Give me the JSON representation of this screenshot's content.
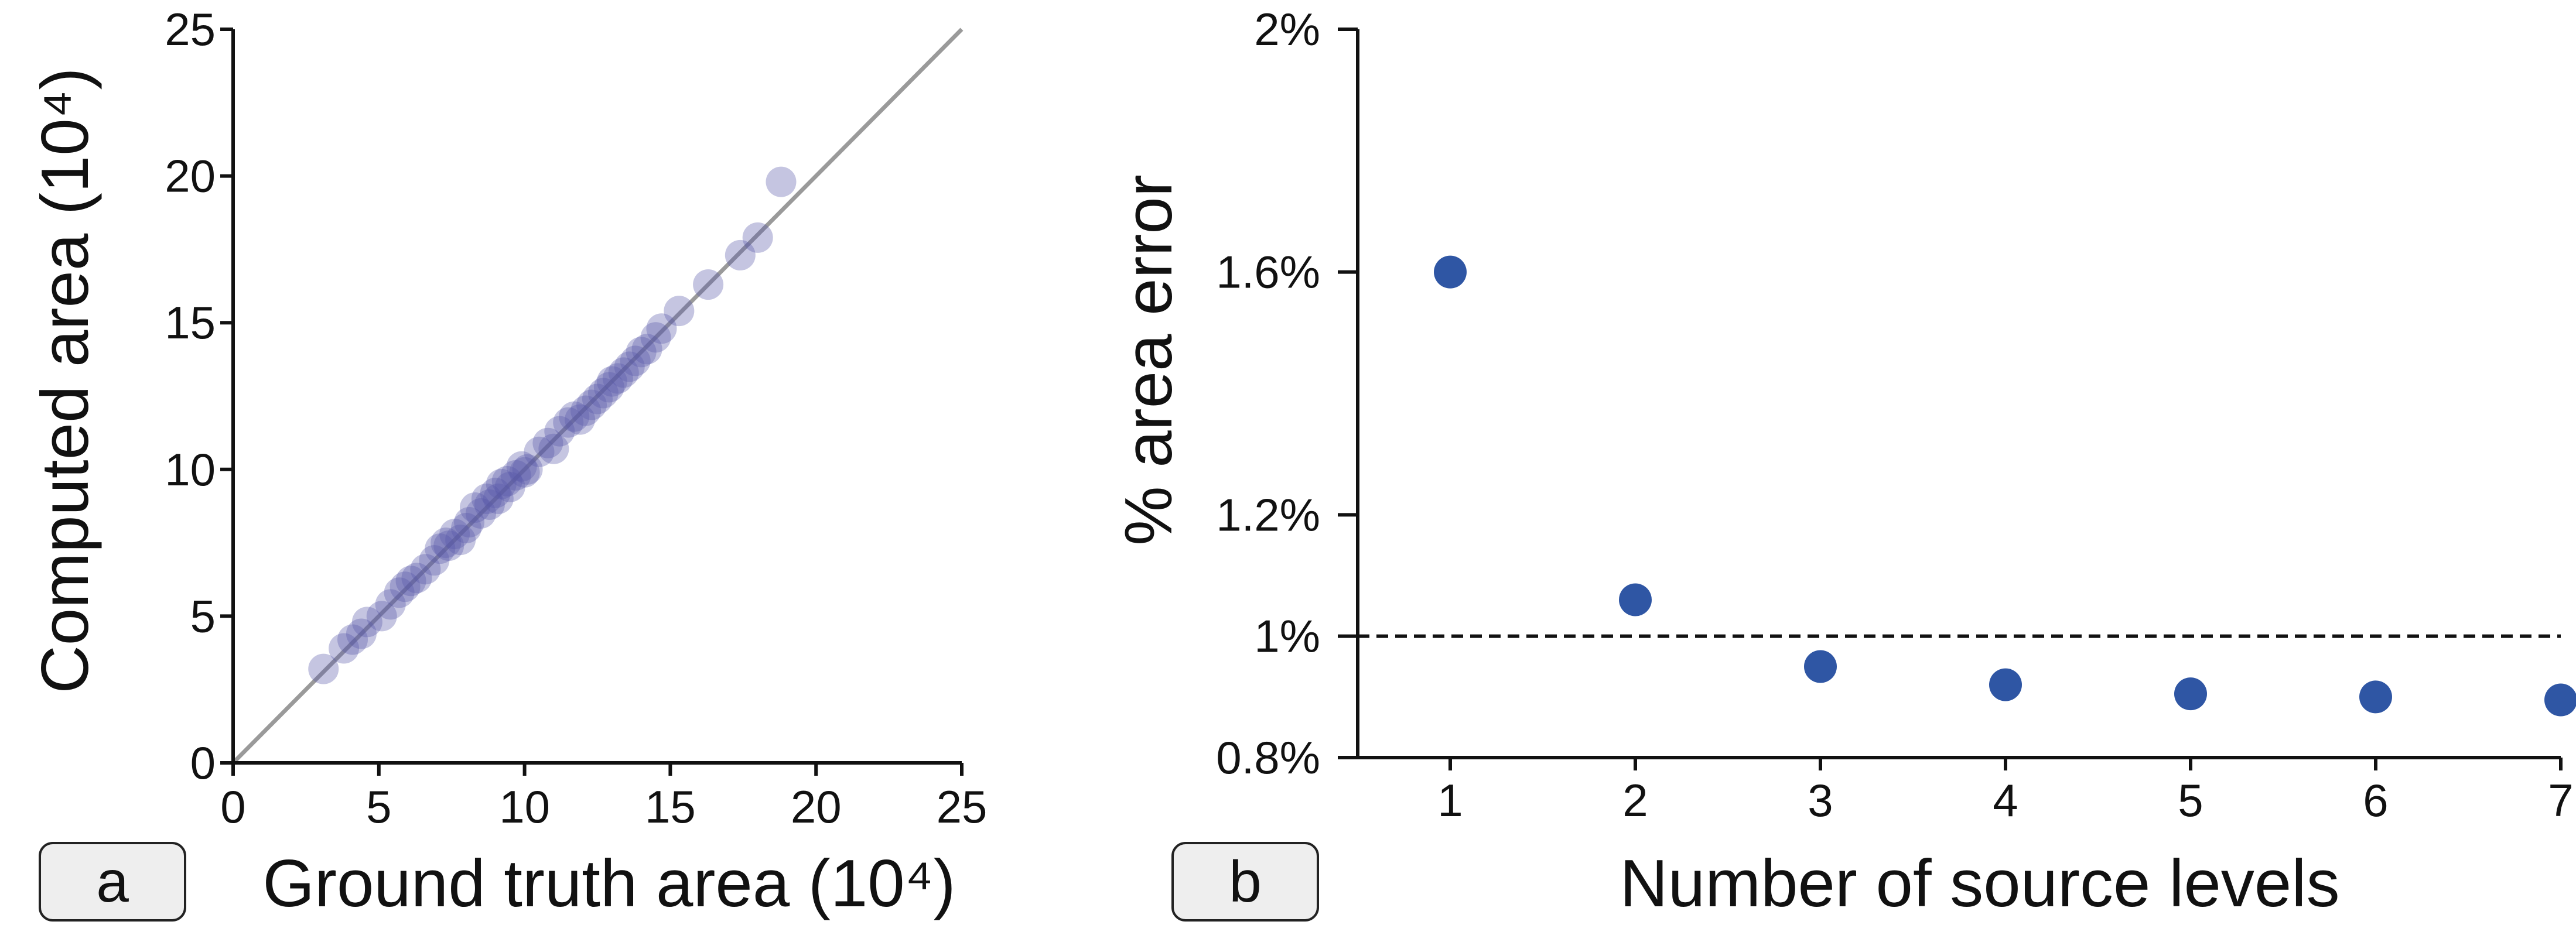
{
  "chart_data": [
    {
      "panel_label": "a",
      "type": "scatter",
      "xlabel": "Ground truth area (10⁴)",
      "ylabel": "Computed area (10⁴)",
      "xlim": [
        0,
        25
      ],
      "ylim": [
        0,
        25
      ],
      "xticks": [
        "0",
        "5",
        "10",
        "15",
        "20",
        "25"
      ],
      "yticks": [
        "0",
        "5",
        "10",
        "15",
        "20",
        "25"
      ],
      "reference_line": "y = x",
      "point_color": "#5a5aa8",
      "line_color": "#9a9a9a",
      "series": [
        {
          "x": [
            3.1,
            3.8,
            4.1,
            4.4,
            4.6,
            5.1,
            5.4,
            5.7,
            5.9,
            6.1,
            6.3,
            6.6,
            6.9,
            7.1,
            7.3,
            7.4,
            7.6,
            7.8,
            8.0,
            8.1,
            8.3,
            8.5,
            8.7,
            8.8,
            9.0,
            9.1,
            9.2,
            9.4,
            9.5,
            9.7,
            9.9,
            10.0,
            10.1,
            10.5,
            10.8,
            11.0,
            11.2,
            11.5,
            11.7,
            11.9,
            12.1,
            12.3,
            12.5,
            12.7,
            12.9,
            13.0,
            13.2,
            13.4,
            13.6,
            13.8,
            14.0,
            14.2,
            14.5,
            14.7,
            15.3,
            16.3,
            17.4,
            18.0,
            18.8
          ],
          "y": [
            3.2,
            3.9,
            4.2,
            4.4,
            4.8,
            5.0,
            5.4,
            5.8,
            6.0,
            6.2,
            6.3,
            6.6,
            6.9,
            7.3,
            7.5,
            7.4,
            7.8,
            7.6,
            8.0,
            8.2,
            8.7,
            8.5,
            9.0,
            8.8,
            9.2,
            9.0,
            9.5,
            9.6,
            9.4,
            9.8,
            10.1,
            9.9,
            10.0,
            10.6,
            10.9,
            10.7,
            11.3,
            11.6,
            11.8,
            11.7,
            12.0,
            12.2,
            12.4,
            12.6,
            12.8,
            13.0,
            13.1,
            13.3,
            13.5,
            13.7,
            14.0,
            14.1,
            14.5,
            14.8,
            15.4,
            16.3,
            17.3,
            17.9,
            19.8
          ]
        }
      ]
    },
    {
      "panel_label": "b",
      "type": "scatter",
      "xlabel": "Number of source levels",
      "ylabel": "% area error",
      "xlim": [
        0.5,
        7
      ],
      "ylim": [
        0.8,
        2.0
      ],
      "xticks": [
        "1",
        "2",
        "3",
        "4",
        "5",
        "6",
        "7"
      ],
      "ytick_values": [
        0.8,
        1.0,
        1.2,
        1.6,
        2.0
      ],
      "yticks": [
        "0.8%",
        "1%",
        "1.2%",
        "1.6%",
        "2%"
      ],
      "threshold_line": 1.0,
      "point_color": "#2f56a4",
      "series": [
        {
          "x": [
            1,
            2,
            3,
            4,
            5,
            6,
            7
          ],
          "y": [
            1.6,
            1.06,
            0.95,
            0.92,
            0.905,
            0.9,
            0.895
          ]
        }
      ]
    }
  ]
}
